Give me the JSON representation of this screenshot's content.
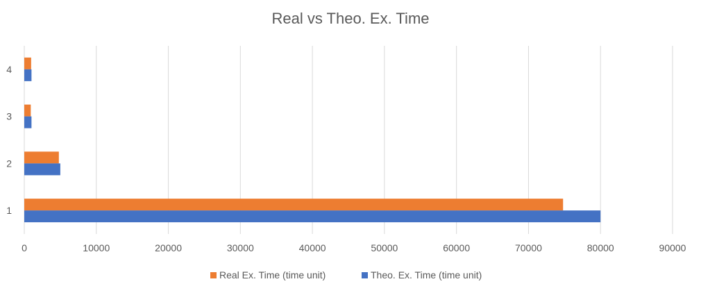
{
  "chart_data": {
    "type": "bar",
    "orientation": "horizontal",
    "title": "Real vs Theo. Ex. Time",
    "xlabel": "",
    "ylabel": "",
    "categories": [
      "1",
      "2",
      "3",
      "4"
    ],
    "series": [
      {
        "name": "Real Ex. Time (time unit)",
        "color": "#ED7D31",
        "values": [
          74800,
          4800,
          900,
          950
        ]
      },
      {
        "name": "Theo. Ex. Time (time unit)",
        "color": "#4472C4",
        "values": [
          80000,
          5000,
          1000,
          1000
        ]
      }
    ],
    "xlim": [
      0,
      90000
    ],
    "xticks": [
      "0",
      "10000",
      "20000",
      "30000",
      "40000",
      "50000",
      "60000",
      "70000",
      "80000",
      "90000"
    ],
    "grid": true,
    "legend_position": "bottom"
  }
}
